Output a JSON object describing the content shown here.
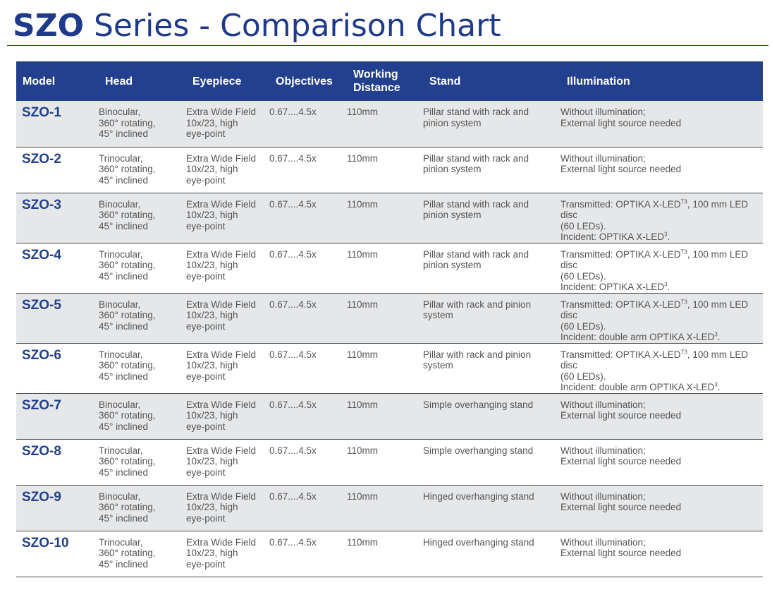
{
  "title": {
    "bold": "SZO",
    "rest": " Series - Comparison Chart"
  },
  "table": {
    "headers": {
      "model": "Model",
      "head": "Head",
      "eyepiece": "Eyepiece",
      "objectives": "Objectives",
      "working_distance_line1": "Working",
      "working_distance_line2": "Distance",
      "stand": "Stand",
      "illumination": "Illumination"
    },
    "rows": [
      {
        "model": "SZO-1",
        "head": "Binocular,\n360° rotating,\n45° inclined",
        "eyepiece": "Extra Wide Field\n10x/23, high\neye-point",
        "objectives": "0.67....4.5x",
        "working_distance": "110mm",
        "stand": "Pillar stand with rack and\npinion system",
        "illum_a": "Without illumination;\nExternal light source needed"
      },
      {
        "model": "SZO-2",
        "head": "Trinocular,\n360° rotating,\n45° inclined",
        "eyepiece": "Extra Wide Field\n10x/23, high\neye-point",
        "objectives": "0.67....4.5x",
        "working_distance": "110mm",
        "stand": "Pillar stand with rack and\npinion system",
        "illum_a": "Without illumination;\nExternal light source needed"
      },
      {
        "model": "SZO-3",
        "head": "Binocular,\n360° rotating,\n45° inclined",
        "eyepiece": "Extra Wide Field\n10x/23, high\neye-point",
        "objectives": "0.67....4.5x",
        "working_distance": "110mm",
        "stand": "Pillar stand with rack and\npinion system",
        "illum_a": "Transmitted: OPTIKA X-LED",
        "illum_sup1": "T3",
        "illum_b": ", 100 mm LED disc\n(60 LEDs).\nIncident: OPTIKA X-LED",
        "illum_sup2": "3",
        "illum_c": "."
      },
      {
        "model": "SZO-4",
        "head": "Trinocular,\n360° rotating,\n45° inclined",
        "eyepiece": "Extra Wide Field\n10x/23, high\neye-point",
        "objectives": "0.67....4.5x",
        "working_distance": "110mm",
        "stand": "Pillar stand with rack and\npinion system",
        "illum_a": "Transmitted: OPTIKA X-LED",
        "illum_sup1": "T3",
        "illum_b": ", 100 mm LED disc\n(60 LEDs).\nIncident: OPTIKA X-LED",
        "illum_sup2": "3",
        "illum_c": "."
      },
      {
        "model": "SZO-5",
        "head": "Binocular,\n360° rotating,\n45° inclined",
        "eyepiece": "Extra Wide Field\n10x/23, high\neye-point",
        "objectives": "0.67....4.5x",
        "working_distance": "110mm",
        "stand": "Pillar with rack and pinion\nsystem",
        "illum_a": "Transmitted: OPTIKA X-LED",
        "illum_sup1": "T3",
        "illum_b": ", 100 mm LED disc\n(60 LEDs).\nIncident: double arm OPTIKA X-LED",
        "illum_sup2": "3",
        "illum_c": "."
      },
      {
        "model": "SZO-6",
        "head": "Trinocular,\n360° rotating,\n45° inclined",
        "eyepiece": "Extra Wide Field\n10x/23, high\neye-point",
        "objectives": "0.67....4.5x",
        "working_distance": "110mm",
        "stand": "Pillar with rack and pinion\nsystem",
        "illum_a": "Transmitted: OPTIKA X-LED",
        "illum_sup1": "T3",
        "illum_b": ", 100 mm LED disc\n(60 LEDs).\nIncident: double arm OPTIKA X-LED",
        "illum_sup2": "3",
        "illum_c": "."
      },
      {
        "model": "SZO-7",
        "head": "Binocular,\n360° rotating,\n45° inclined",
        "eyepiece": "Extra Wide Field\n10x/23, high\neye-point",
        "objectives": "0.67....4.5x",
        "working_distance": "110mm",
        "stand": "Simple overhanging stand",
        "illum_a": "Without illumination;\nExternal light source needed"
      },
      {
        "model": "SZO-8",
        "head": "Trinocular,\n360° rotating,\n45° inclined",
        "eyepiece": "Extra Wide Field\n10x/23, high\neye-point",
        "objectives": "0.67....4.5x",
        "working_distance": "110mm",
        "stand": "Simple overhanging stand",
        "illum_a": "Without illumination;\nExternal light source needed"
      },
      {
        "model": "SZO-9",
        "head": "Binocular,\n360° rotating,\n45° inclined",
        "eyepiece": "Extra Wide Field\n10x/23, high\neye-point",
        "objectives": "0.67....4.5x",
        "working_distance": "110mm",
        "stand": "Hinged overhanging stand",
        "illum_a": "Without illumination;\nExternal light source needed"
      },
      {
        "model": "SZO-10",
        "head": "Trinocular,\n360° rotating,\n45° inclined",
        "eyepiece": "Extra Wide Field\n10x/23, high\neye-point",
        "objectives": "0.67....4.5x",
        "working_distance": "110mm",
        "stand": "Hinged overhanging stand",
        "illum_a": "Without illumination;\nExternal light source needed"
      }
    ]
  }
}
